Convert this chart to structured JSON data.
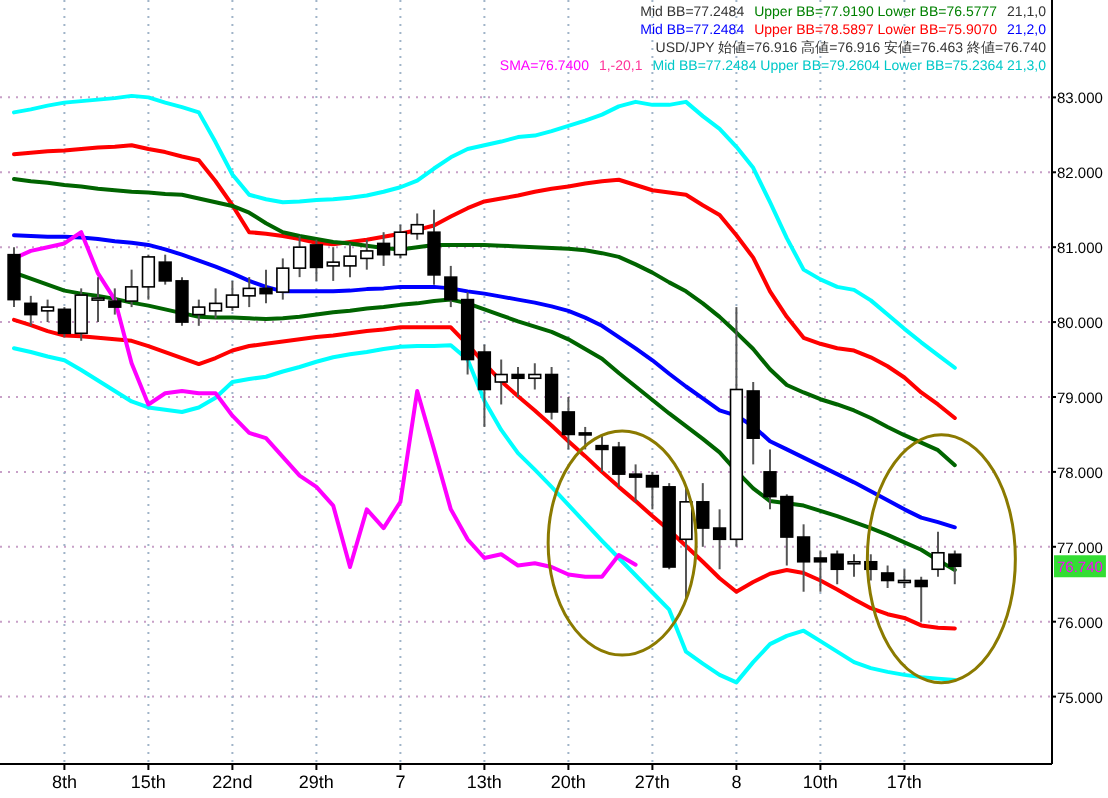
{
  "chart_data": {
    "type": "candlestick",
    "categories": [
      null,
      null,
      null,
      "8th",
      null,
      null,
      null,
      null,
      "15th",
      null,
      null,
      null,
      null,
      "22nd",
      null,
      null,
      null,
      null,
      "29th",
      null,
      null,
      null,
      null,
      "7",
      null,
      null,
      null,
      null,
      "13th",
      null,
      null,
      null,
      null,
      "20th",
      null,
      null,
      null,
      null,
      "27th",
      null,
      null,
      null,
      null,
      "8",
      null,
      null,
      null,
      null,
      "10th",
      null,
      null,
      null,
      null,
      "17th",
      null,
      null,
      null
    ],
    "ohlc": [
      [
        80.9,
        81.0,
        80.2,
        80.3
      ],
      [
        80.25,
        80.35,
        79.95,
        80.1
      ],
      [
        80.15,
        80.3,
        80.0,
        80.2
      ],
      [
        80.17,
        80.2,
        79.8,
        79.85
      ],
      [
        79.85,
        80.45,
        79.75,
        80.36
      ],
      [
        80.3,
        80.6,
        80.0,
        80.32
      ],
      [
        80.28,
        80.45,
        80.1,
        80.2
      ],
      [
        80.28,
        80.7,
        80.2,
        80.47
      ],
      [
        80.47,
        80.9,
        80.3,
        80.87
      ],
      [
        80.8,
        80.9,
        80.5,
        80.55
      ],
      [
        80.55,
        80.6,
        79.95,
        80.0
      ],
      [
        80.1,
        80.3,
        79.95,
        80.2
      ],
      [
        80.15,
        80.45,
        80.05,
        80.25
      ],
      [
        80.2,
        80.55,
        80.15,
        80.36
      ],
      [
        80.35,
        80.6,
        80.2,
        80.45
      ],
      [
        80.45,
        80.7,
        80.25,
        80.38
      ],
      [
        80.4,
        80.85,
        80.3,
        80.72
      ],
      [
        80.72,
        81.15,
        80.6,
        81.0
      ],
      [
        81.03,
        81.1,
        80.55,
        80.73
      ],
      [
        80.75,
        81.0,
        80.55,
        80.8
      ],
      [
        80.75,
        81.05,
        80.6,
        80.88
      ],
      [
        80.85,
        81.1,
        80.7,
        80.95
      ],
      [
        81.05,
        81.2,
        80.75,
        80.9
      ],
      [
        80.9,
        81.3,
        80.85,
        81.2
      ],
      [
        81.18,
        81.45,
        81.1,
        81.3
      ],
      [
        81.2,
        81.5,
        80.5,
        80.63
      ],
      [
        80.6,
        80.75,
        80.2,
        80.3
      ],
      [
        80.3,
        80.4,
        79.3,
        79.5
      ],
      [
        79.6,
        79.7,
        78.6,
        79.1
      ],
      [
        79.2,
        79.5,
        78.9,
        79.3
      ],
      [
        79.3,
        79.4,
        79.0,
        79.25
      ],
      [
        79.25,
        79.45,
        79.1,
        79.3
      ],
      [
        79.3,
        79.4,
        78.7,
        78.8
      ],
      [
        78.8,
        79.0,
        78.3,
        78.5
      ],
      [
        78.52,
        78.6,
        78.3,
        78.5
      ],
      [
        78.35,
        78.5,
        78.0,
        78.3
      ],
      [
        78.33,
        78.4,
        77.8,
        77.97
      ],
      [
        77.97,
        78.1,
        77.6,
        77.93
      ],
      [
        77.95,
        78.0,
        77.5,
        77.8
      ],
      [
        77.8,
        77.85,
        76.7,
        76.73
      ],
      [
        77.1,
        77.8,
        76.3,
        77.6
      ],
      [
        77.6,
        77.85,
        77.0,
        77.25
      ],
      [
        77.25,
        77.5,
        76.7,
        77.1
      ],
      [
        77.1,
        80.2,
        77.0,
        79.1
      ],
      [
        79.08,
        79.2,
        78.1,
        78.45
      ],
      [
        78.0,
        78.3,
        77.5,
        77.67
      ],
      [
        77.67,
        77.7,
        76.75,
        77.13
      ],
      [
        77.13,
        77.3,
        76.4,
        76.8
      ],
      [
        76.85,
        76.95,
        76.4,
        76.8
      ],
      [
        76.9,
        76.95,
        76.5,
        76.7
      ],
      [
        76.8,
        76.9,
        76.6,
        76.8
      ],
      [
        76.8,
        76.9,
        76.55,
        76.7
      ],
      [
        76.65,
        76.75,
        76.45,
        76.55
      ],
      [
        76.55,
        76.7,
        76.45,
        76.55
      ],
      [
        76.55,
        76.6,
        76.0,
        76.47
      ],
      [
        76.7,
        77.2,
        76.6,
        76.92
      ],
      [
        76.9,
        76.95,
        76.5,
        76.74
      ]
    ],
    "series": [
      {
        "type": "line",
        "color": "#00ffff",
        "values": [
          82.8,
          82.84,
          82.89,
          82.93,
          82.95,
          82.97,
          82.99,
          83.02,
          83.0,
          82.93,
          82.87,
          82.8,
          82.4,
          81.97,
          81.7,
          81.64,
          81.6,
          81.61,
          81.63,
          81.64,
          81.66,
          81.69,
          81.74,
          81.8,
          81.89,
          82.05,
          82.2,
          82.31,
          82.36,
          82.41,
          82.47,
          82.49,
          82.55,
          82.62,
          82.69,
          82.77,
          82.88,
          82.94,
          82.9,
          82.9,
          82.94,
          82.75,
          82.58,
          82.34,
          82.06,
          81.6,
          81.12,
          80.7,
          80.57,
          80.47,
          80.43,
          80.29,
          80.1,
          79.91,
          79.73,
          79.56,
          79.39
        ]
      },
      {
        "type": "line",
        "color": "#ff0000",
        "values": [
          82.24,
          82.26,
          82.28,
          82.29,
          82.31,
          82.33,
          82.34,
          82.36,
          82.31,
          82.27,
          82.21,
          82.16,
          81.88,
          81.56,
          81.2,
          81.18,
          81.15,
          81.11,
          81.06,
          81.04,
          81.07,
          81.1,
          81.14,
          81.18,
          81.23,
          81.29,
          81.41,
          81.52,
          81.61,
          81.65,
          81.69,
          81.74,
          81.78,
          81.81,
          81.85,
          81.88,
          81.9,
          81.83,
          81.76,
          81.73,
          81.7,
          81.56,
          81.43,
          81.16,
          80.86,
          80.41,
          80.07,
          79.79,
          79.71,
          79.65,
          79.62,
          79.53,
          79.41,
          79.26,
          79.06,
          78.9,
          78.72
        ]
      },
      {
        "type": "line",
        "color": "#006400",
        "values": [
          81.91,
          81.88,
          81.86,
          81.83,
          81.81,
          81.78,
          81.76,
          81.74,
          81.73,
          81.71,
          81.7,
          81.65,
          81.6,
          81.55,
          81.46,
          81.32,
          81.2,
          81.15,
          81.11,
          81.07,
          81.05,
          81.02,
          80.99,
          80.97,
          81.0,
          81.03,
          81.03,
          81.03,
          81.03,
          81.02,
          81.01,
          81.0,
          80.99,
          80.98,
          80.96,
          80.92,
          80.87,
          80.77,
          80.66,
          80.53,
          80.41,
          80.25,
          80.07,
          79.86,
          79.64,
          79.37,
          79.16,
          79.06,
          78.97,
          78.9,
          78.82,
          78.72,
          78.6,
          78.49,
          78.39,
          78.29,
          78.09
        ]
      },
      {
        "type": "line",
        "color": "#0000ff",
        "values": [
          81.16,
          81.15,
          81.14,
          81.14,
          81.13,
          81.11,
          81.08,
          81.06,
          81.03,
          80.97,
          80.9,
          80.82,
          80.74,
          80.65,
          80.55,
          80.47,
          80.41,
          80.41,
          80.41,
          80.41,
          80.42,
          80.44,
          80.45,
          80.47,
          80.47,
          80.47,
          80.45,
          80.41,
          80.38,
          80.34,
          80.3,
          80.26,
          80.21,
          80.15,
          80.06,
          79.95,
          79.8,
          79.65,
          79.49,
          79.31,
          79.14,
          78.98,
          78.82,
          78.75,
          78.61,
          78.41,
          78.3,
          78.19,
          78.08,
          77.97,
          77.86,
          77.74,
          77.62,
          77.5,
          77.39,
          77.33,
          77.26
        ]
      },
      {
        "type": "line",
        "color": "#006400",
        "values": [
          80.66,
          80.58,
          80.5,
          80.42,
          80.38,
          80.35,
          80.31,
          80.26,
          80.22,
          80.17,
          80.12,
          80.07,
          80.06,
          80.06,
          80.05,
          80.04,
          80.05,
          80.07,
          80.1,
          80.13,
          80.15,
          80.18,
          80.2,
          80.23,
          80.25,
          80.28,
          80.3,
          80.25,
          80.17,
          80.09,
          80.01,
          79.94,
          79.87,
          79.77,
          79.64,
          79.51,
          79.32,
          79.14,
          78.96,
          78.78,
          78.61,
          78.44,
          78.26,
          78.01,
          77.78,
          77.61,
          77.58,
          77.55,
          77.48,
          77.41,
          77.33,
          77.25,
          77.16,
          77.06,
          76.96,
          76.82,
          76.69
        ]
      },
      {
        "type": "line",
        "color": "#ff0000",
        "values": [
          80.03,
          79.96,
          79.88,
          79.82,
          79.81,
          79.79,
          79.77,
          79.75,
          79.68,
          79.6,
          79.52,
          79.44,
          79.52,
          79.62,
          79.68,
          79.71,
          79.74,
          79.77,
          79.8,
          79.82,
          79.85,
          79.88,
          79.9,
          79.93,
          79.93,
          79.93,
          79.93,
          79.7,
          79.45,
          79.21,
          79.01,
          78.82,
          78.62,
          78.41,
          78.21,
          78.0,
          77.8,
          77.61,
          77.41,
          77.22,
          77.01,
          76.8,
          76.58,
          76.4,
          76.53,
          76.64,
          76.69,
          76.65,
          76.55,
          76.43,
          76.3,
          76.18,
          76.1,
          76.05,
          75.95,
          75.92,
          75.91
        ]
      },
      {
        "type": "line",
        "color": "#00ffff",
        "values": [
          79.65,
          79.6,
          79.54,
          79.49,
          79.36,
          79.22,
          79.08,
          78.94,
          78.86,
          78.83,
          78.8,
          78.86,
          78.99,
          79.2,
          79.24,
          79.27,
          79.34,
          79.4,
          79.47,
          79.53,
          79.57,
          79.6,
          79.64,
          79.67,
          79.68,
          79.68,
          79.69,
          79.5,
          78.95,
          78.56,
          78.25,
          78.03,
          77.8,
          77.56,
          77.32,
          77.08,
          76.85,
          76.62,
          76.39,
          76.16,
          75.6,
          75.44,
          75.29,
          75.19,
          75.46,
          75.7,
          75.81,
          75.88,
          75.74,
          75.6,
          75.46,
          75.38,
          75.33,
          75.29,
          75.26,
          75.24,
          75.22
        ]
      },
      {
        "type": "line",
        "color": "#ff00ff",
        "values": [
          80.85,
          80.95,
          81.0,
          81.05,
          81.2,
          80.65,
          80.3,
          79.45,
          78.9,
          79.05,
          79.08,
          79.05,
          79.05,
          78.75,
          78.52,
          78.45,
          78.2,
          77.95,
          77.8,
          77.55,
          76.73,
          77.5,
          77.25,
          77.6,
          79.08,
          78.3,
          77.5,
          77.1,
          76.85,
          76.9,
          76.75,
          76.78,
          76.73,
          76.63,
          76.6,
          76.6,
          76.89,
          76.76,
          null,
          null,
          null,
          null,
          null,
          null,
          null,
          null,
          null,
          null,
          null,
          null,
          null,
          null,
          null,
          null,
          null,
          null,
          null
        ]
      }
    ],
    "ylim": [
      74.1,
      84.3
    ],
    "yticks": [
      {
        "value": 75,
        "label": "75.000"
      },
      {
        "value": 76,
        "label": "76.000"
      },
      {
        "value": 77,
        "label": "77.000"
      },
      {
        "value": 78,
        "label": "78.000"
      },
      {
        "value": 79,
        "label": "79.000"
      },
      {
        "value": 80,
        "label": "80.000"
      },
      {
        "value": 81,
        "label": "81.000"
      },
      {
        "value": 82,
        "label": "82.000"
      },
      {
        "value": 83,
        "label": "83.000"
      }
    ],
    "grid": true,
    "annotations": [
      "Mid BB=77.2484",
      "Upper BB=77.9190 Lower BB=76.5777",
      "21,1,0",
      "Mid BB=77.2484",
      "Upper BB=78.5897 Lower BB=75.9070",
      "21,2,0",
      "USD/JPY 始値=76.916 高値=76.916 安値=76.463 終値=76.740",
      "SMA=76.7400",
      "1,-20,1",
      "Mid BB=77.2484 Upper BB=79.2604 Lower BB=75.2364 21,3,0",
      "76.740"
    ]
  }
}
